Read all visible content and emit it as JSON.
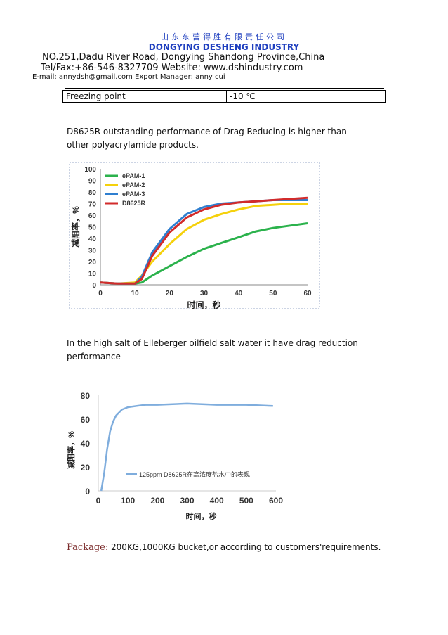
{
  "header": {
    "company_cn": "山东东营得胜有限责任公司",
    "company_en": "DONGYING DESHENG INDUSTRY",
    "address": "NO.251,Dadu River Road, Dongying Shandong Province,China",
    "contact": "Tel/Fax:+86-546-8327709 Website: www.dshindustry.com",
    "email": "E-mail: annydsh@gmail.com Export Manager: anny cui"
  },
  "table": {
    "label": "Freezing point",
    "value": "-10 ℃"
  },
  "paragraph1": "D8625R outstanding performance of Drag Reducing is higher than other polyacrylamide products.",
  "paragraph2": "In the high salt of Elleberger oilfield salt water it have drag reduction performance",
  "package": {
    "label": "Package:",
    "text": " 200KG,1000KG bucket,or according to customers'requirements."
  },
  "colors": {
    "brand_blue": "#1f3fbf",
    "green": "#2bb24c",
    "yellow": "#f5d10c",
    "blue": "#2f7fd0",
    "red": "#d22b2b",
    "light_blue": "#7faddd"
  },
  "chart_data": [
    {
      "type": "line",
      "title": "",
      "xlabel": "时间，秒",
      "ylabel": "减阻率，%",
      "xlim": [
        0,
        60
      ],
      "ylim": [
        0,
        100
      ],
      "x_ticks": [
        0,
        10,
        20,
        30,
        40,
        50,
        60
      ],
      "y_ticks": [
        0,
        10,
        20,
        30,
        40,
        50,
        60,
        70,
        80,
        90,
        100
      ],
      "legend_position": "top-left",
      "x": [
        0,
        5,
        10,
        12,
        15,
        20,
        25,
        30,
        35,
        40,
        45,
        50,
        55,
        60
      ],
      "series": [
        {
          "name": "ePAM-1",
          "color": "green",
          "values": [
            2,
            1,
            1,
            2,
            8,
            16,
            24,
            31,
            36,
            41,
            46,
            49,
            51,
            53
          ]
        },
        {
          "name": "ePAM-2",
          "color": "yellow",
          "values": [
            2,
            1,
            2,
            8,
            20,
            35,
            48,
            56,
            61,
            65,
            68,
            69,
            70,
            70
          ]
        },
        {
          "name": "ePAM-3",
          "color": "blue",
          "values": [
            2,
            1,
            1,
            7,
            28,
            48,
            61,
            67,
            70,
            71,
            72,
            73,
            73,
            73
          ]
        },
        {
          "name": "D8625R",
          "color": "red",
          "values": [
            2,
            1,
            1,
            5,
            25,
            45,
            58,
            65,
            69,
            71,
            72,
            73,
            74,
            75
          ]
        }
      ]
    },
    {
      "type": "line",
      "title": "",
      "xlabel": "时间，秒",
      "ylabel": "减阻率，%",
      "xlim": [
        0,
        600
      ],
      "ylim": [
        0,
        80
      ],
      "x_ticks": [
        0,
        100,
        200,
        300,
        400,
        500,
        600
      ],
      "y_ticks": [
        0,
        20,
        40,
        60,
        80
      ],
      "legend_position": "bottom-right",
      "x": [
        10,
        20,
        30,
        40,
        50,
        60,
        80,
        100,
        130,
        160,
        200,
        300,
        400,
        500,
        590
      ],
      "series": [
        {
          "name": "125ppm  D8625R在高浓度盐水中的表现",
          "color": "light_blue",
          "values": [
            0,
            15,
            35,
            50,
            58,
            63,
            68,
            70,
            71,
            72,
            72,
            73,
            72,
            72,
            71
          ]
        }
      ]
    }
  ]
}
